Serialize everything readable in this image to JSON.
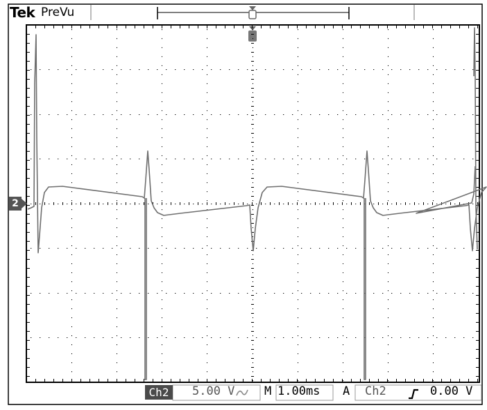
{
  "header": {
    "brand": "Tek",
    "mode": "PreVu"
  },
  "channel_marker": "2",
  "footer": {
    "channel": "Ch2",
    "volts_per_div": "5.00 V",
    "coupling_icon": "ac-coupling-icon",
    "timebase_prefix": "M",
    "timebase": "1.00ms",
    "trigger_prefix": "A",
    "trigger_source": "Ch2",
    "trigger_slope_icon": "rising-edge-icon",
    "trigger_level": "0.00 V"
  },
  "colors": {
    "trace": "#6e6e6e",
    "grid": "#000000",
    "background": "#ffffff"
  }
}
